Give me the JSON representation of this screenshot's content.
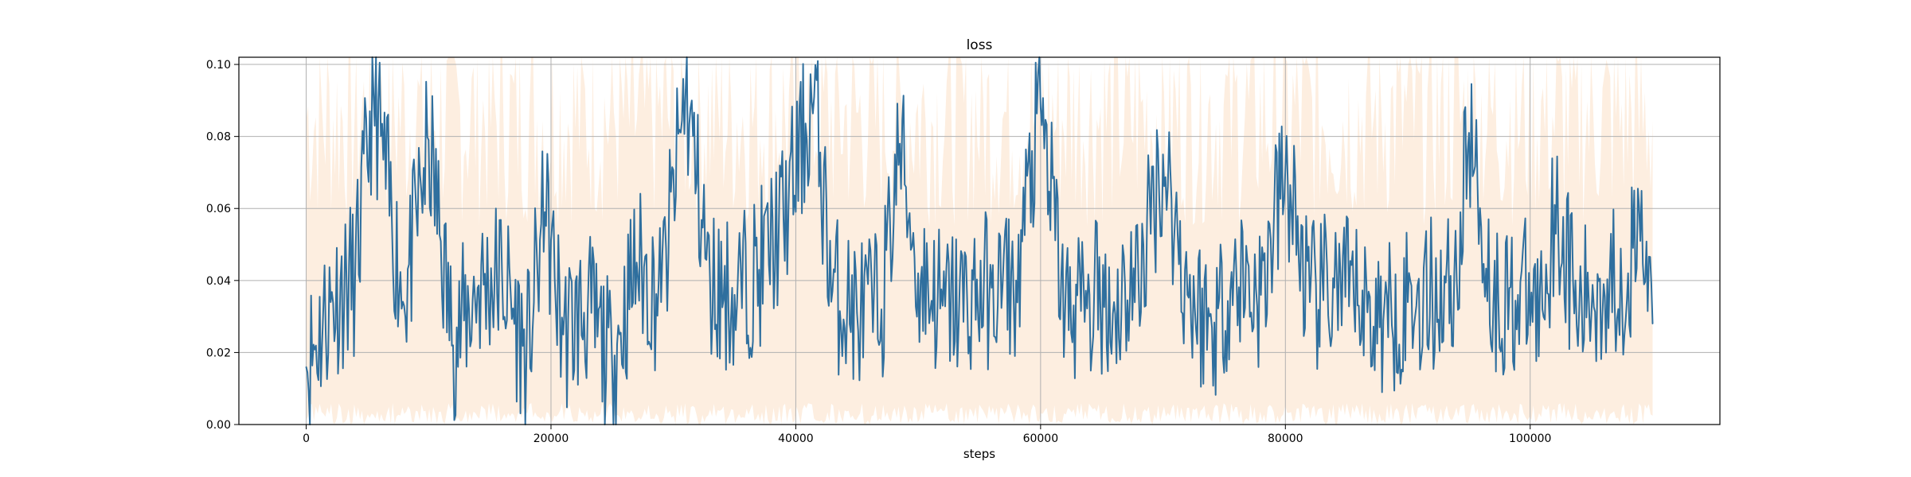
{
  "chart_data": {
    "type": "line",
    "title": "loss",
    "xlabel": "steps",
    "ylabel": "",
    "xlim": [
      -5500,
      115500
    ],
    "ylim": [
      0.0,
      0.102
    ],
    "xticks": [
      0,
      20000,
      40000,
      60000,
      80000,
      100000
    ],
    "xtick_labels": [
      "0",
      "20000",
      "40000",
      "60000",
      "80000",
      "100000"
    ],
    "yticks": [
      0.0,
      0.02,
      0.04,
      0.06,
      0.08,
      0.1
    ],
    "ytick_labels": [
      "0.00",
      "0.02",
      "0.04",
      "0.06",
      "0.08",
      "0.10"
    ],
    "grid": true,
    "colors": {
      "line": "#2f6f9e",
      "band": "#fdeee0"
    },
    "series": [
      {
        "role": "smoothed-line",
        "x": [
          0,
          2000,
          4000,
          5500,
          8000,
          10000,
          12000,
          14000,
          16000,
          18000,
          19500,
          21000,
          23000,
          25000,
          27000,
          29000,
          31000,
          33000,
          35000,
          37000,
          39000,
          41500,
          43000,
          45000,
          47000,
          48500,
          50000,
          52000,
          54000,
          56000,
          58000,
          60000,
          62000,
          64000,
          66000,
          68000,
          70000,
          72000,
          74000,
          76000,
          78000,
          80000,
          82000,
          84000,
          86000,
          88000,
          90000,
          92000,
          94000,
          95000,
          97000,
          99000,
          101000,
          102000,
          104000,
          106000,
          108000,
          109000,
          110000
        ],
        "y": [
          0.016,
          0.034,
          0.041,
          0.092,
          0.033,
          0.079,
          0.022,
          0.038,
          0.042,
          0.019,
          0.059,
          0.025,
          0.032,
          0.016,
          0.045,
          0.034,
          0.093,
          0.039,
          0.036,
          0.043,
          0.057,
          0.091,
          0.037,
          0.031,
          0.032,
          0.078,
          0.042,
          0.033,
          0.035,
          0.038,
          0.04,
          0.088,
          0.031,
          0.036,
          0.034,
          0.04,
          0.075,
          0.036,
          0.027,
          0.042,
          0.036,
          0.071,
          0.034,
          0.038,
          0.033,
          0.029,
          0.034,
          0.036,
          0.04,
          0.081,
          0.034,
          0.036,
          0.032,
          0.061,
          0.031,
          0.039,
          0.042,
          0.051,
          0.028
        ]
      }
    ]
  }
}
